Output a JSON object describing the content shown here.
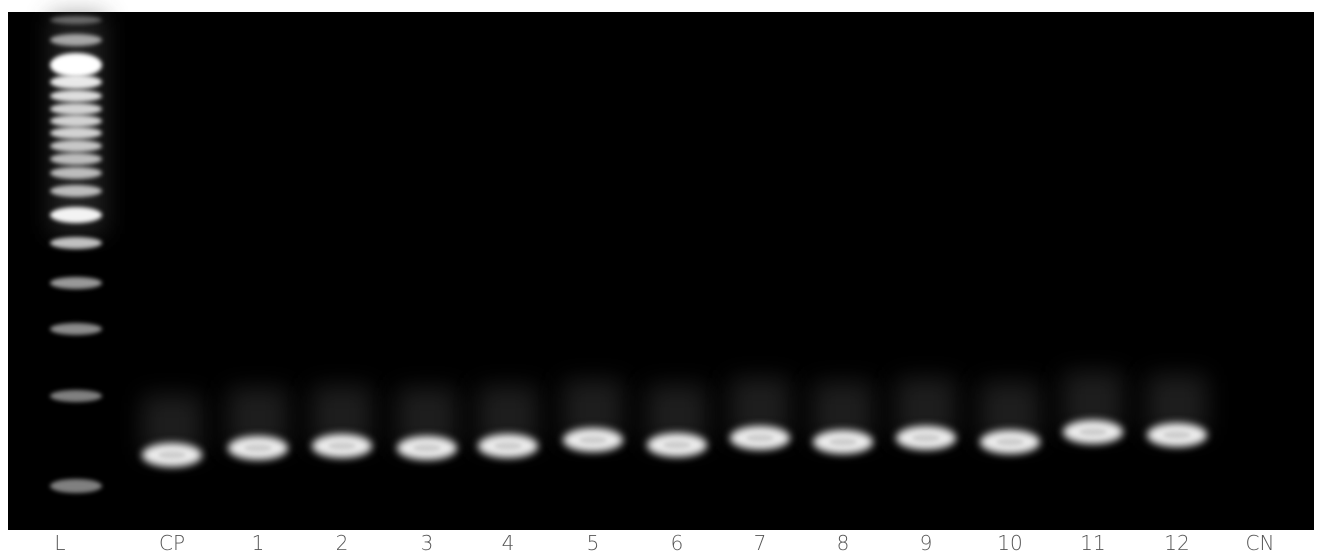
{
  "lanes": [
    "L",
    "CP",
    "1",
    "2",
    "3",
    "4",
    "5",
    "6",
    "7",
    "8",
    "9",
    "10",
    "11",
    "12",
    "CN"
  ]
}
